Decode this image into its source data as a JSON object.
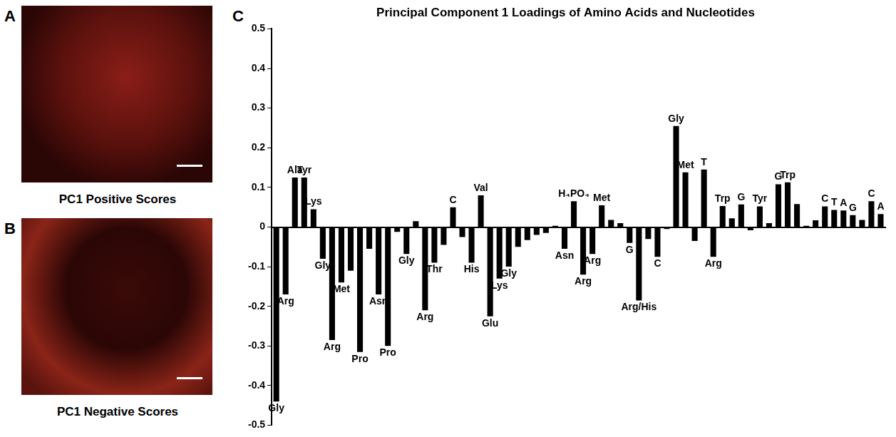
{
  "panels": [
    {
      "letter": "A",
      "caption": "PC1 Positive Scores"
    },
    {
      "letter": "B",
      "caption": "PC1 Negative Scores"
    }
  ],
  "chart_data": {
    "type": "bar",
    "panel_label": "C",
    "title": "Principal Component 1 Loadings of Amino Acids and Nucleotides",
    "categories": [
      "Gly",
      "Arg",
      "Ala",
      "Tyr",
      "Lys",
      "Gly",
      "Arg",
      "Met",
      null,
      "Pro",
      null,
      "Asn",
      "Pro",
      null,
      "Gly",
      null,
      "Arg",
      "Thr",
      null,
      "C",
      null,
      "His",
      "Val",
      "Glu",
      "Lys",
      "Gly",
      null,
      null,
      null,
      null,
      null,
      "Asn",
      "H₄PO₄",
      "Arg",
      "Arg",
      "Met",
      null,
      null,
      "G",
      "Arg/His",
      null,
      "C",
      null,
      "Gly",
      "Met",
      null,
      "T",
      "Arg",
      "Trp",
      null,
      "G",
      null,
      "Tyr",
      null,
      "G",
      "Trp",
      null,
      null,
      null,
      "C",
      "T",
      "A",
      "G",
      null,
      "C",
      "A"
    ],
    "values": [
      -0.44,
      -0.17,
      0.125,
      0.125,
      0.045,
      -0.08,
      -0.285,
      -0.14,
      -0.11,
      -0.315,
      -0.055,
      -0.17,
      -0.3,
      -0.012,
      -0.068,
      0.015,
      -0.21,
      -0.09,
      -0.045,
      0.05,
      -0.025,
      -0.09,
      0.08,
      -0.225,
      -0.13,
      -0.1,
      -0.05,
      -0.033,
      -0.02,
      -0.015,
      0.003,
      -0.055,
      0.065,
      -0.12,
      -0.068,
      0.055,
      0.018,
      0.01,
      -0.04,
      -0.185,
      -0.03,
      -0.075,
      -0.005,
      0.255,
      0.138,
      -0.035,
      0.145,
      -0.075,
      0.053,
      0.022,
      0.057,
      -0.008,
      0.052,
      0.01,
      0.108,
      0.113,
      0.058,
      0.003,
      0.017,
      0.052,
      0.043,
      0.042,
      0.03,
      0.018,
      0.065,
      0.033
    ],
    "color": "#000000",
    "ylim": [
      -0.5,
      0.5
    ],
    "yticks": [
      -0.5,
      -0.4,
      -0.3,
      -0.2,
      -0.1,
      0,
      0.1,
      0.2,
      0.3,
      0.4,
      0.5
    ],
    "grid": false,
    "tick_labels": "y"
  }
}
